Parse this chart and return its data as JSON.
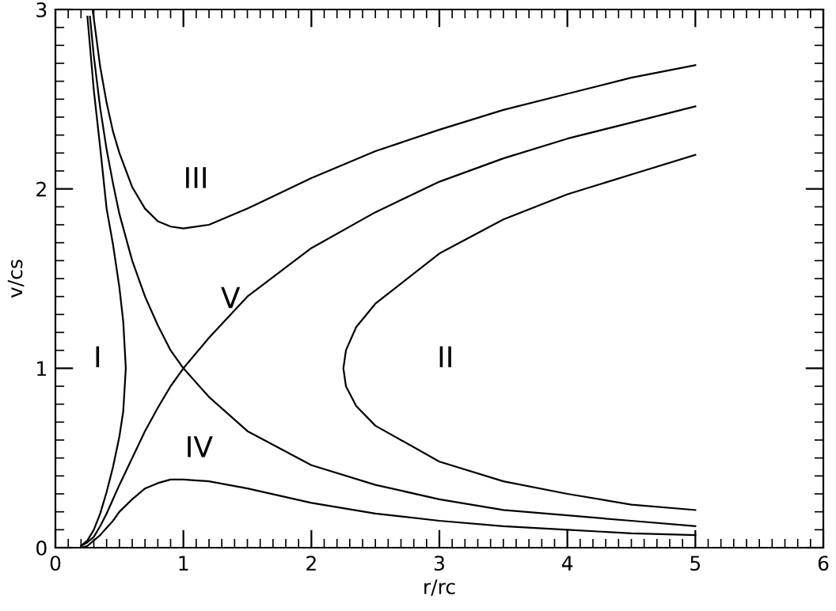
{
  "chart_data": {
    "type": "line",
    "xlabel": "r/rc",
    "ylabel": "v/cs",
    "xlim": [
      0,
      6
    ],
    "ylim": [
      0,
      3
    ],
    "xticks": [
      0,
      1,
      2,
      3,
      4,
      5,
      6
    ],
    "yticks": [
      0,
      1,
      2,
      3
    ],
    "grid": false,
    "legend": false,
    "marker": "none",
    "line_style": "solid",
    "series": [
      {
        "color": "#000000",
        "x": [
          0.25,
          0.3,
          0.35,
          0.4,
          0.45,
          0.5,
          0.53,
          0.55,
          0.53,
          0.5,
          0.45,
          0.4,
          0.35,
          0.3,
          0.25,
          0.2
        ],
        "values": [
          2.96,
          2.55,
          2.23,
          1.89,
          1.69,
          1.45,
          1.26,
          1,
          0.76,
          0.62,
          0.45,
          0.31,
          0.19,
          0.1,
          0.04,
          0.01
        ]
      },
      {
        "color": "#000000",
        "x": [
          5,
          4.5,
          4,
          3.5,
          3,
          2.5,
          2.35,
          2.27,
          2.25,
          2.27,
          2.35,
          2.5,
          3,
          3.5,
          4,
          4.5,
          5
        ],
        "values": [
          2.19,
          2.08,
          1.97,
          1.83,
          1.64,
          1.36,
          1.23,
          1.1,
          1,
          0.9,
          0.79,
          0.68,
          0.48,
          0.37,
          0.3,
          0.24,
          0.21
        ]
      },
      {
        "color": "#000000",
        "x": [
          0.29,
          0.3,
          0.35,
          0.4,
          0.45,
          0.5,
          0.6,
          0.7,
          0.8,
          0.9,
          1,
          1.2,
          1.5,
          2,
          2.5,
          3,
          3.5,
          4,
          4.5,
          5
        ],
        "values": [
          3,
          2.95,
          2.68,
          2.48,
          2.32,
          2.2,
          2.01,
          1.89,
          1.82,
          1.79,
          1.78,
          1.8,
          1.89,
          2.06,
          2.21,
          2.33,
          2.44,
          2.53,
          2.62,
          2.69
        ]
      },
      {
        "color": "#000000",
        "x": [
          0.2,
          0.25,
          0.3,
          0.35,
          0.4,
          0.45,
          0.5,
          0.6,
          0.7,
          0.8,
          0.9,
          1,
          1.2,
          1.5,
          2,
          2.5,
          3,
          3.5,
          4,
          4.5,
          5
        ],
        "values": [
          0,
          0.01,
          0.04,
          0.07,
          0.11,
          0.15,
          0.2,
          0.27,
          0.33,
          0.36,
          0.38,
          0.38,
          0.37,
          0.33,
          0.25,
          0.19,
          0.15,
          0.12,
          0.1,
          0.08,
          0.07
        ]
      },
      {
        "color": "#000000",
        "x": [
          0.2,
          0.25,
          0.3,
          0.35,
          0.4,
          0.45,
          0.5,
          0.6,
          0.7,
          0.8,
          0.9,
          1,
          1.2,
          1.5,
          2,
          2.5,
          3,
          3.5,
          4,
          4.5,
          5
        ],
        "values": [
          0.01,
          0.03,
          0.06,
          0.12,
          0.19,
          0.27,
          0.35,
          0.5,
          0.65,
          0.78,
          0.9,
          1,
          1.17,
          1.4,
          1.67,
          1.87,
          2.04,
          2.17,
          2.28,
          2.37,
          2.46
        ]
      },
      {
        "color": "#000000",
        "x": [
          0.27,
          0.3,
          0.35,
          0.4,
          0.45,
          0.5,
          0.6,
          0.7,
          0.8,
          0.9,
          1,
          1.2,
          1.5,
          2,
          2.5,
          3,
          3.5,
          4,
          4.5,
          5
        ],
        "values": [
          2.96,
          2.74,
          2.45,
          2.22,
          2.03,
          1.86,
          1.6,
          1.4,
          1.24,
          1.1,
          1,
          0.84,
          0.65,
          0.46,
          0.35,
          0.27,
          0.21,
          0.18,
          0.15,
          0.12
        ]
      }
    ],
    "annotations": [
      "I",
      "II",
      "III",
      "IV",
      "V"
    ]
  }
}
